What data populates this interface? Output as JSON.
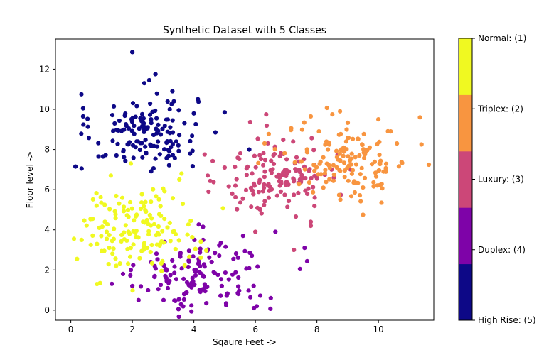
{
  "chart_data": {
    "type": "scatter",
    "title": "Synthetic Dataset with 5 Classes",
    "xlabel": "Sqaure Feet ->",
    "ylabel": "Floor level ->",
    "xlim": [
      -0.5,
      11.8
    ],
    "ylim": [
      -0.5,
      13.5
    ],
    "xticks": [
      0,
      2,
      4,
      6,
      8,
      10
    ],
    "yticks": [
      0,
      2,
      4,
      6,
      8,
      10,
      12
    ],
    "grid": false,
    "colorbar": {
      "labels": [
        "High Rise: (5)",
        "Duplex: (4)",
        "Luxury: (3)",
        "Triplex: (2)",
        "Normal: (1)"
      ],
      "colors": [
        "#0d0887",
        "#7e03a8",
        "#cc4778",
        "#f89540",
        "#f0f921"
      ]
    },
    "series": [
      {
        "color": "#0d0887",
        "n": 150,
        "center": [
          2.4,
          8.9
        ],
        "spread": [
          0.85,
          0.95
        ],
        "points": [
          [
            2.0,
            12.85
          ],
          [
            2.75,
            11.75
          ],
          [
            0.4,
            10.05
          ],
          [
            0.4,
            9.65
          ],
          [
            0.15,
            7.15
          ],
          [
            0.35,
            7.05
          ],
          [
            1.05,
            7.65
          ],
          [
            0.9,
            7.65
          ],
          [
            5.0,
            9.85
          ],
          [
            5.8,
            8.0
          ],
          [
            4.7,
            8.85
          ],
          [
            3.35,
            10.4
          ],
          [
            3.3,
            10.9
          ],
          [
            2.55,
            11.45
          ]
        ]
      },
      {
        "color": "#7e03a8",
        "n": 150,
        "center": [
          4.3,
          1.7
        ],
        "spread": [
          1.05,
          0.95
        ],
        "points": [
          [
            2.0,
            1.2
          ],
          [
            2.2,
            0.5
          ],
          [
            3.5,
            0.05
          ],
          [
            4.3,
            3.5
          ],
          [
            5.6,
            3.7
          ],
          [
            6.65,
            3.9
          ],
          [
            7.6,
            3.1
          ],
          [
            7.45,
            2.05
          ],
          [
            6.5,
            0.6
          ],
          [
            5.95,
            0.1
          ],
          [
            5.05,
            0.25
          ],
          [
            2.6,
            2.4
          ],
          [
            1.95,
            2.0
          ],
          [
            3.05,
            3.4
          ]
        ]
      },
      {
        "color": "#cc4778",
        "n": 150,
        "center": [
          6.8,
          6.7
        ],
        "spread": [
          0.9,
          0.95
        ],
        "points": [
          [
            4.35,
            7.75
          ],
          [
            4.45,
            6.7
          ],
          [
            5.0,
            7.1
          ],
          [
            7.8,
            4.4
          ],
          [
            7.8,
            4.2
          ],
          [
            6.35,
            9.75
          ],
          [
            5.35,
            6.2
          ],
          [
            8.55,
            6.6
          ],
          [
            7.25,
            3.0
          ],
          [
            6.0,
            3.9
          ]
        ]
      },
      {
        "color": "#f89540",
        "n": 150,
        "center": [
          9.0,
          7.35
        ],
        "spread": [
          1.0,
          0.9
        ],
        "points": [
          [
            11.35,
            9.6
          ],
          [
            11.4,
            8.25
          ],
          [
            10.4,
            8.9
          ],
          [
            10.6,
            8.3
          ],
          [
            10.0,
            9.5
          ],
          [
            8.75,
            9.9
          ],
          [
            9.5,
            4.75
          ],
          [
            10.1,
            5.35
          ],
          [
            8.5,
            9.75
          ],
          [
            7.8,
            9.65
          ]
        ]
      },
      {
        "color": "#f0f921",
        "n": 150,
        "center": [
          2.2,
          4.1
        ],
        "spread": [
          0.95,
          0.95
        ],
        "points": [
          [
            0.1,
            3.55
          ],
          [
            0.2,
            2.55
          ],
          [
            0.35,
            3.5
          ],
          [
            0.95,
            1.35
          ],
          [
            0.85,
            1.3
          ],
          [
            3.0,
            6.05
          ],
          [
            3.6,
            6.8
          ],
          [
            2.95,
            1.95
          ],
          [
            1.95,
            7.3
          ],
          [
            3.9,
            4.45
          ],
          [
            4.05,
            3.05
          ],
          [
            1.3,
            6.7
          ],
          [
            1.1,
            5.25
          ]
        ]
      }
    ]
  }
}
